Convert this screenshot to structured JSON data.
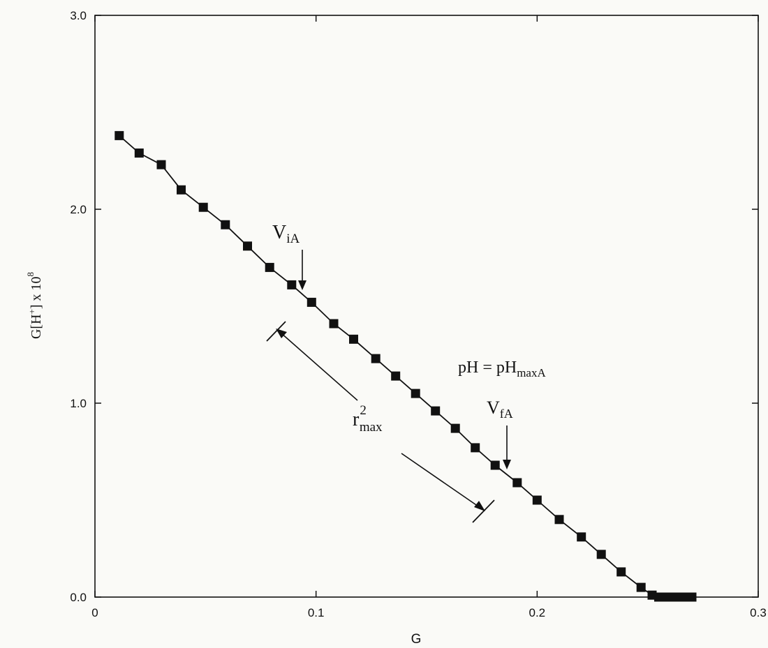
{
  "chart_data": {
    "type": "scatter",
    "xlabel": "G",
    "ylabel": {
      "base": "G[H",
      "sup": "+",
      "tail": "] x 10",
      "exp": "8"
    },
    "xlim": [
      0,
      0.3
    ],
    "ylim": [
      0,
      3.0
    ],
    "x_ticks": [
      "0",
      "0.1",
      "0.2",
      "0.3"
    ],
    "y_ticks": [
      "0.0",
      "1.0",
      "2.0",
      "3.0"
    ],
    "grid": false,
    "series": [
      {
        "line": true,
        "marker": "square",
        "points": [
          [
            0.011,
            2.38
          ],
          [
            0.02,
            2.29
          ],
          [
            0.03,
            2.23
          ],
          [
            0.039,
            2.1
          ],
          [
            0.049,
            2.01
          ],
          [
            0.059,
            1.92
          ],
          [
            0.069,
            1.81
          ],
          [
            0.079,
            1.7
          ],
          [
            0.089,
            1.61
          ],
          [
            0.098,
            1.52
          ],
          [
            0.108,
            1.41
          ],
          [
            0.117,
            1.33
          ],
          [
            0.127,
            1.23
          ],
          [
            0.136,
            1.14
          ],
          [
            0.145,
            1.05
          ],
          [
            0.154,
            0.96
          ],
          [
            0.163,
            0.87
          ],
          [
            0.172,
            0.77
          ],
          [
            0.181,
            0.68
          ],
          [
            0.191,
            0.59
          ],
          [
            0.2,
            0.5
          ],
          [
            0.21,
            0.4
          ],
          [
            0.22,
            0.31
          ],
          [
            0.229,
            0.22
          ],
          [
            0.238,
            0.13
          ],
          [
            0.247,
            0.05
          ],
          [
            0.252,
            0.01
          ],
          [
            0.255,
            0.0
          ],
          [
            0.258,
            0.0
          ],
          [
            0.261,
            0.0
          ],
          [
            0.264,
            0.0
          ],
          [
            0.267,
            0.0
          ],
          [
            0.27,
            0.0
          ]
        ]
      }
    ],
    "annotations": {
      "v_ia": {
        "main": "V",
        "sub": "iA"
      },
      "ph_eq": {
        "main": "pH = pH",
        "sub": "maxA"
      },
      "v_fa": {
        "main": "V",
        "sub": "fA"
      },
      "r2": {
        "main": "r",
        "sup": "2",
        "sub": "max"
      }
    },
    "colors": {
      "ink": "#111111",
      "background": "#fafaf7"
    }
  }
}
